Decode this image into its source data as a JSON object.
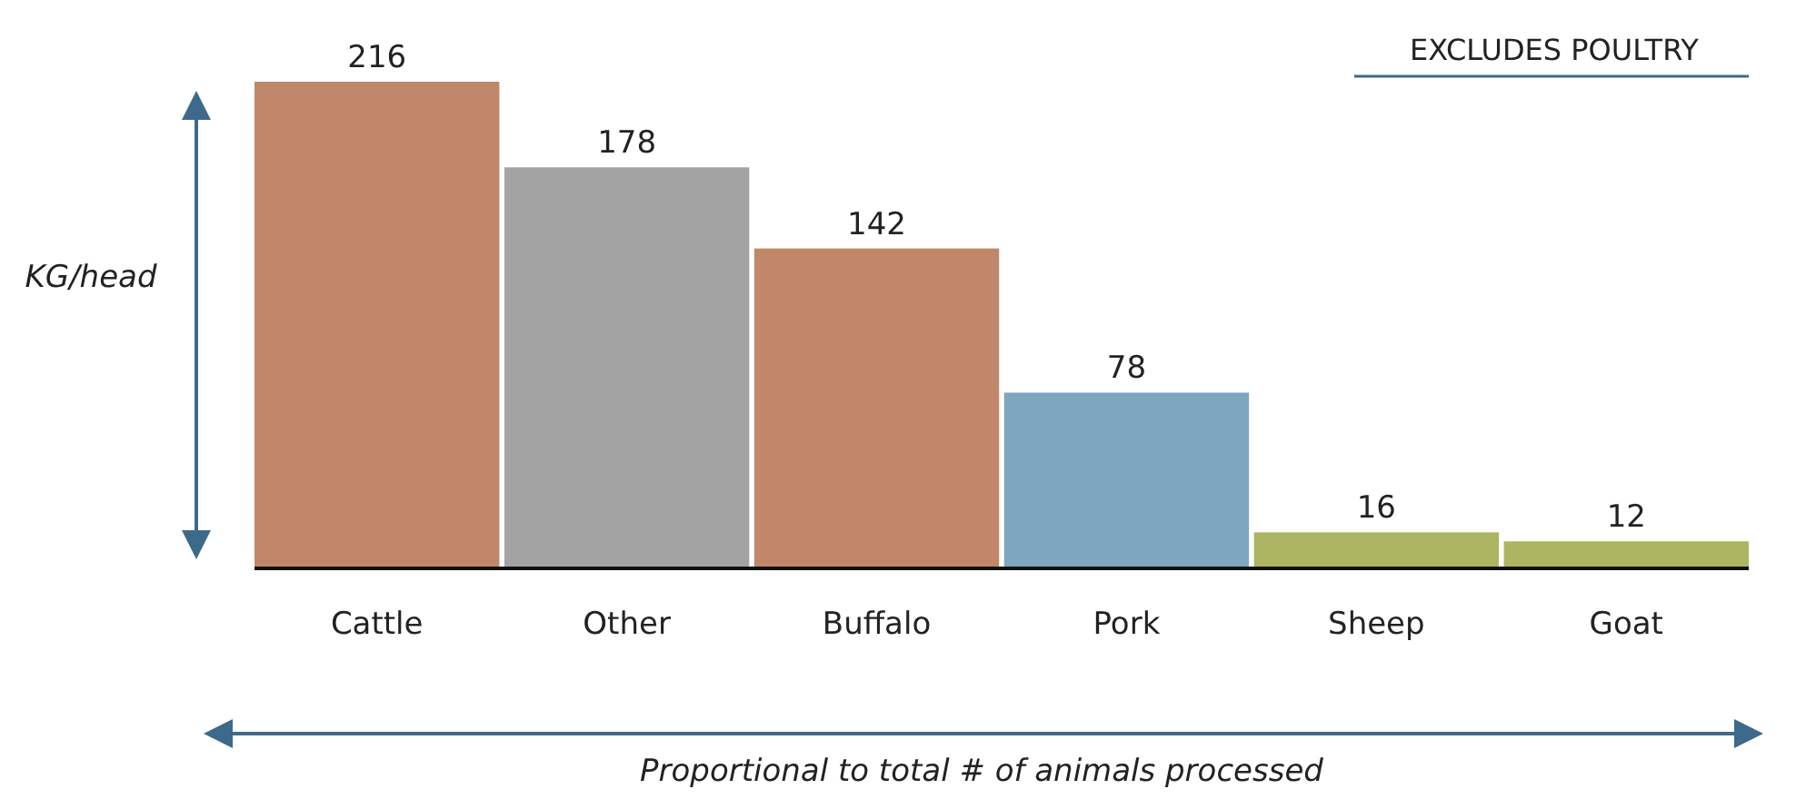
{
  "chart_data": {
    "type": "bar",
    "categories": [
      "Cattle",
      "Other",
      "Buffalo",
      "Pork",
      "Sheep",
      "Goat"
    ],
    "values": [
      216,
      178,
      142,
      78,
      16,
      12
    ],
    "colors": [
      "#c0876a",
      "#a3a3a3",
      "#c0876a",
      "#7ea6bf",
      "#adb562",
      "#adb562"
    ],
    "data_labels": true,
    "ylabel": "KG/head",
    "xlabel": "Proportional to total # of animals processed",
    "annotations": [
      "EXCLUDES POULTRY"
    ]
  }
}
